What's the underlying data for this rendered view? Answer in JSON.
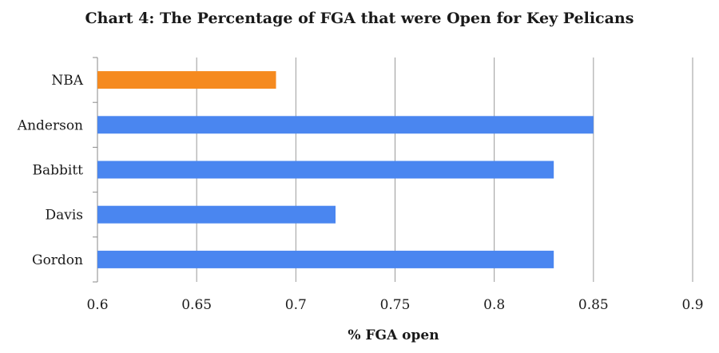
{
  "chart_data": {
    "type": "bar",
    "orientation": "horizontal",
    "title": "Chart 4: The Percentage of FGA that were Open for Key Pelicans",
    "xlabel": "% FGA open",
    "ylabel": "",
    "categories": [
      "NBA",
      "Anderson",
      "Babbitt",
      "Davis",
      "Gordon"
    ],
    "values": [
      0.69,
      0.85,
      0.83,
      0.72,
      0.83
    ],
    "bar_colors": [
      "#f58a1f",
      "#4a86f0",
      "#4a86f0",
      "#4a86f0",
      "#4a86f0"
    ],
    "xlim": [
      0.6,
      0.9
    ],
    "xticks": [
      "0.6",
      "0.65",
      "0.7",
      "0.75",
      "0.8",
      "0.85",
      "0.9"
    ],
    "grid": "vertical"
  }
}
